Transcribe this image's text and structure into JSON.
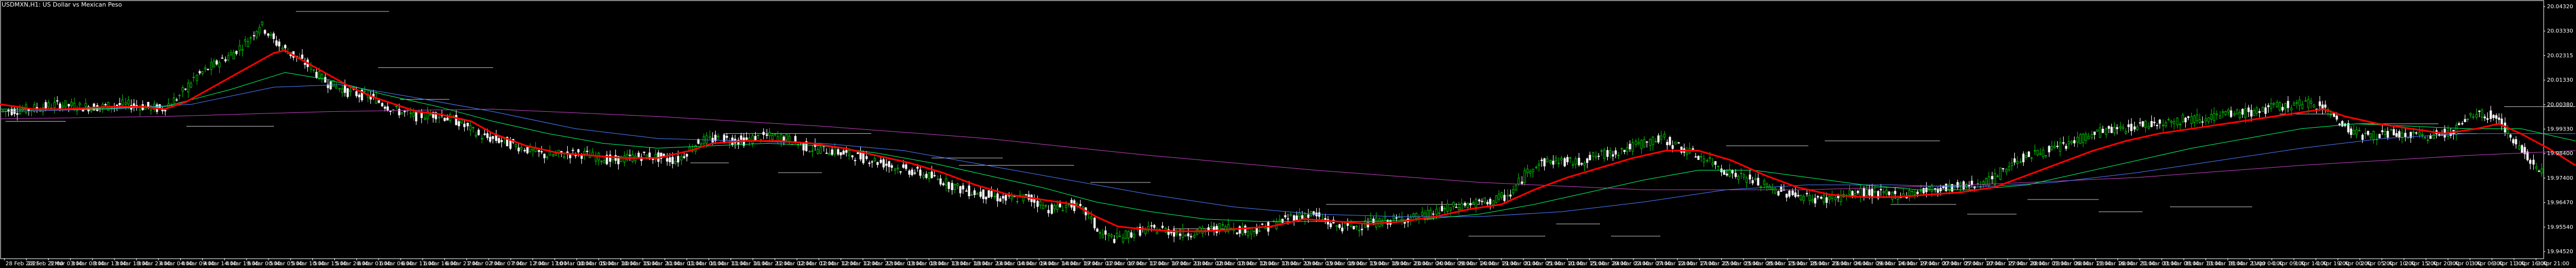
{
  "header": {
    "symbol_title": "USDMXN,H1: US Dollar vs Mexican Peso"
  },
  "colors": {
    "background": "#000000",
    "grid_frame": "#ffffff",
    "bull_candle": "#00c000",
    "bear_candle": "#ffffff",
    "ma_fast": "#ff0000",
    "ma_mid1": "#00ff66",
    "ma_mid2": "#4a7cff",
    "ma_slow": "#c040c0",
    "level_lines": "#c0c0c0"
  },
  "chart_data": {
    "type": "candlestick",
    "title": "USDMXN,H1: US Dollar vs Mexican Peso",
    "timeframe": "H1",
    "ylim": [
      19.94,
      20.045
    ],
    "y_ticks": [
      "20.04320",
      "20.03330",
      "20.02315",
      "20.01330",
      "20.00380",
      "19.99330",
      "19.98400",
      "19.97400",
      "19.96470",
      "19.95540",
      "19.94520"
    ],
    "x_ticks": [
      "28 Feb 2025",
      "28 Feb 22:00",
      "3 Mar 03:00",
      "3 Mar 08:00",
      "3 Mar 13:00",
      "3 Mar 18:00",
      "3 Mar 23:00",
      "4 Mar 04:00",
      "4 Mar 09:00",
      "4 Mar 14:00",
      "4 Mar 19:00",
      "5 Mar 00:00",
      "5 Mar 05:00",
      "5 Mar 10:00",
      "5 Mar 15:00",
      "5 Mar 20:00",
      "6 Mar 01:00",
      "6 Mar 06:00",
      "6 Mar 11:00",
      "6 Mar 16:00",
      "6 Mar 21:00",
      "7 Mar 02:00",
      "7 Mar 07:00",
      "7 Mar 12:00",
      "7 Mar 17:00",
      "10 Mar 00:00",
      "10 Mar 05:00",
      "10 Mar 10:00",
      "10 Mar 15:00",
      "10 Mar 20:00",
      "11 Mar 01:00",
      "11 Mar 06:00",
      "11 Mar 11:00",
      "11 Mar 16:00",
      "11 Mar 21:00",
      "12 Mar 02:00",
      "12 Mar 07:00",
      "12 Mar 12:00",
      "12 Mar 17:00",
      "12 Mar 22:00",
      "13 Mar 03:00",
      "13 Mar 08:00",
      "13 Mar 13:00",
      "13 Mar 18:00",
      "13 Mar 23:00",
      "14 Mar 04:00",
      "14 Mar 09:00",
      "14 Mar 14:00",
      "14 Mar 19:00",
      "17 Mar 01:00",
      "17 Mar 06:00",
      "17 Mar 11:00",
      "17 Mar 16:00",
      "17 Mar 21:00",
      "18 Mar 02:00",
      "18 Mar 07:00",
      "18 Mar 12:00",
      "18 Mar 17:00",
      "18 Mar 22:00",
      "19 Mar 03:00",
      "19 Mar 08:00",
      "19 Mar 13:00",
      "19 Mar 18:00",
      "19 Mar 23:00",
      "20 Mar 04:00",
      "20 Mar 09:00",
      "20 Mar 14:00",
      "20 Mar 19:00",
      "21 Mar 00:00",
      "21 Mar 05:00",
      "21 Mar 10:00",
      "21 Mar 15:00",
      "21 Mar 20:00",
      "24 Mar 02:00",
      "24 Mar 07:00",
      "24 Mar 12:00",
      "24 Mar 17:00",
      "24 Mar 22:00",
      "25 Mar 03:00",
      "25 Mar 08:00",
      "25 Mar 13:00",
      "25 Mar 18:00",
      "25 Mar 23:00",
      "26 Mar 04:00",
      "26 Mar 09:00",
      "26 Mar 14:00",
      "26 Mar 19:00",
      "27 Mar 00:00",
      "27 Mar 05:00",
      "27 Mar 10:00",
      "27 Mar 15:00",
      "27 Mar 20:00",
      "28 Mar 01:00",
      "28 Mar 06:00",
      "28 Mar 11:00",
      "28 Mar 16:00",
      "28 Mar 21:00",
      "31 Mar 03:00",
      "31 Mar 08:00",
      "31 Mar 13:00",
      "31 Mar 18:00",
      "31 Mar 23:00",
      "1 Apr 04:00",
      "1 Apr 09:00",
      "1 Apr 14:00",
      "1 Apr 19:00",
      "2 Apr 00:00",
      "2 Apr 05:00",
      "2 Apr 10:00",
      "2 Apr 15:00",
      "2 Apr 20:00",
      "3 Apr 01:00",
      "3 Apr 06:00",
      "3 Apr 11:00",
      "3 Apr 16:00",
      "3 Apr 21:00"
    ],
    "price_path": [
      [
        0,
        20.0
      ],
      [
        60,
        20.001
      ],
      [
        110,
        20.003
      ],
      [
        150,
        20.002
      ],
      [
        190,
        20.002
      ],
      [
        230,
        20.003
      ],
      [
        270,
        20.002
      ],
      [
        300,
        20.001
      ],
      [
        330,
        20.006
      ],
      [
        360,
        20.014
      ],
      [
        400,
        20.02
      ],
      [
        430,
        20.024
      ],
      [
        460,
        20.03
      ],
      [
        480,
        20.036
      ],
      [
        500,
        20.03
      ],
      [
        520,
        20.026
      ],
      [
        560,
        20.02
      ],
      [
        600,
        20.012
      ],
      [
        640,
        20.008
      ],
      [
        680,
        20.006
      ],
      [
        720,
        20.001
      ],
      [
        760,
        19.998
      ],
      [
        800,
        19.999
      ],
      [
        840,
        19.996
      ],
      [
        880,
        19.99
      ],
      [
        920,
        19.988
      ],
      [
        960,
        19.985
      ],
      [
        1000,
        19.982
      ],
      [
        1060,
        19.983
      ],
      [
        1120,
        19.98
      ],
      [
        1180,
        19.982
      ],
      [
        1240,
        19.98
      ],
      [
        1280,
        19.988
      ],
      [
        1320,
        19.989
      ],
      [
        1360,
        19.988
      ],
      [
        1400,
        19.99
      ],
      [
        1440,
        19.989
      ],
      [
        1480,
        19.985
      ],
      [
        1520,
        19.984
      ],
      [
        1560,
        19.982
      ],
      [
        1600,
        19.98
      ],
      [
        1640,
        19.977
      ],
      [
        1680,
        19.975
      ],
      [
        1720,
        19.972
      ],
      [
        1760,
        19.968
      ],
      [
        1800,
        19.966
      ],
      [
        1840,
        19.964
      ],
      [
        1880,
        19.965
      ],
      [
        1920,
        19.96
      ],
      [
        1960,
        19.962
      ],
      [
        1990,
        19.958
      ],
      [
        2010,
        19.95
      ],
      [
        2040,
        19.948
      ],
      [
        2080,
        19.951
      ],
      [
        2120,
        19.952
      ],
      [
        2160,
        19.95
      ],
      [
        2200,
        19.951
      ],
      [
        2240,
        19.953
      ],
      [
        2280,
        19.951
      ],
      [
        2320,
        19.953
      ],
      [
        2360,
        19.957
      ],
      [
        2400,
        19.958
      ],
      [
        2440,
        19.953
      ],
      [
        2480,
        19.953
      ],
      [
        2520,
        19.955
      ],
      [
        2560,
        19.956
      ],
      [
        2600,
        19.957
      ],
      [
        2640,
        19.96
      ],
      [
        2680,
        19.962
      ],
      [
        2720,
        19.963
      ],
      [
        2760,
        19.966
      ],
      [
        2800,
        19.978
      ],
      [
        2840,
        19.98
      ],
      [
        2880,
        19.979
      ],
      [
        2920,
        19.982
      ],
      [
        2960,
        19.984
      ],
      [
        3000,
        19.987
      ],
      [
        3040,
        19.989
      ],
      [
        3080,
        19.984
      ],
      [
        3120,
        19.98
      ],
      [
        3160,
        19.975
      ],
      [
        3200,
        19.972
      ],
      [
        3240,
        19.968
      ],
      [
        3280,
        19.966
      ],
      [
        3320,
        19.964
      ],
      [
        3360,
        19.965
      ],
      [
        3400,
        19.967
      ],
      [
        3440,
        19.966
      ],
      [
        3480,
        19.966
      ],
      [
        3520,
        19.968
      ],
      [
        3560,
        19.969
      ],
      [
        3600,
        19.97
      ],
      [
        3640,
        19.972
      ],
      [
        3680,
        19.98
      ],
      [
        3720,
        19.983
      ],
      [
        3760,
        19.985
      ],
      [
        3800,
        19.989
      ],
      [
        3840,
        19.992
      ],
      [
        3880,
        19.993
      ],
      [
        3920,
        19.995
      ],
      [
        3960,
        19.996
      ],
      [
        4000,
        19.997
      ],
      [
        4040,
        19.998
      ],
      [
        4080,
        19.999
      ],
      [
        4120,
        20.0
      ],
      [
        4160,
        20.002
      ],
      [
        4200,
        20.003
      ],
      [
        4240,
        20.003
      ],
      [
        4280,
        19.994
      ],
      [
        4320,
        19.99
      ],
      [
        4360,
        19.991
      ],
      [
        4400,
        19.99
      ],
      [
        4440,
        19.99
      ],
      [
        4480,
        19.992
      ],
      [
        4520,
        19.999
      ],
      [
        4560,
        19.998
      ],
      [
        4600,
        19.985
      ],
      [
        4640,
        19.976
      ],
      [
        4670,
        19.972
      ],
      [
        4700,
        19.964
      ]
    ],
    "ma_fast_path": [
      [
        0,
        20.003
      ],
      [
        60,
        20.001
      ],
      [
        120,
        20.001
      ],
      [
        200,
        20.002
      ],
      [
        260,
        20.002
      ],
      [
        300,
        20.001
      ],
      [
        340,
        20.004
      ],
      [
        380,
        20.009
      ],
      [
        420,
        20.014
      ],
      [
        460,
        20.019
      ],
      [
        500,
        20.024
      ],
      [
        520,
        20.025
      ],
      [
        560,
        20.02
      ],
      [
        600,
        20.015
      ],
      [
        640,
        20.01
      ],
      [
        680,
        20.006
      ],
      [
        720,
        20.003
      ],
      [
        760,
        20.0
      ],
      [
        800,
        19.999
      ],
      [
        860,
        19.996
      ],
      [
        900,
        19.991
      ],
      [
        960,
        19.986
      ],
      [
        1020,
        19.983
      ],
      [
        1080,
        19.982
      ],
      [
        1140,
        19.981
      ],
      [
        1200,
        19.981
      ],
      [
        1260,
        19.984
      ],
      [
        1300,
        19.987
      ],
      [
        1360,
        19.988
      ],
      [
        1420,
        19.988
      ],
      [
        1480,
        19.987
      ],
      [
        1540,
        19.985
      ],
      [
        1600,
        19.982
      ],
      [
        1660,
        19.979
      ],
      [
        1720,
        19.975
      ],
      [
        1780,
        19.97
      ],
      [
        1840,
        19.966
      ],
      [
        1900,
        19.964
      ],
      [
        1960,
        19.962
      ],
      [
        2000,
        19.957
      ],
      [
        2040,
        19.953
      ],
      [
        2080,
        19.952
      ],
      [
        2140,
        19.951
      ],
      [
        2200,
        19.951
      ],
      [
        2260,
        19.952
      ],
      [
        2320,
        19.953
      ],
      [
        2380,
        19.956
      ],
      [
        2440,
        19.955
      ],
      [
        2500,
        19.954
      ],
      [
        2560,
        19.955
      ],
      [
        2620,
        19.957
      ],
      [
        2680,
        19.96
      ],
      [
        2740,
        19.962
      ],
      [
        2800,
        19.968
      ],
      [
        2860,
        19.973
      ],
      [
        2920,
        19.977
      ],
      [
        2980,
        19.981
      ],
      [
        3040,
        19.984
      ],
      [
        3100,
        19.984
      ],
      [
        3160,
        19.98
      ],
      [
        3220,
        19.974
      ],
      [
        3280,
        19.969
      ],
      [
        3340,
        19.966
      ],
      [
        3400,
        19.965
      ],
      [
        3460,
        19.965
      ],
      [
        3520,
        19.966
      ],
      [
        3580,
        19.967
      ],
      [
        3640,
        19.969
      ],
      [
        3700,
        19.974
      ],
      [
        3760,
        19.979
      ],
      [
        3820,
        19.984
      ],
      [
        3880,
        19.988
      ],
      [
        3940,
        19.991
      ],
      [
        4000,
        19.993
      ],
      [
        4060,
        19.995
      ],
      [
        4120,
        19.997
      ],
      [
        4180,
        19.999
      ],
      [
        4240,
        20.001
      ],
      [
        4280,
        19.998
      ],
      [
        4340,
        19.995
      ],
      [
        4400,
        19.993
      ],
      [
        4460,
        19.991
      ],
      [
        4520,
        19.993
      ],
      [
        4560,
        19.995
      ],
      [
        4600,
        19.991
      ],
      [
        4650,
        19.985
      ],
      [
        4700,
        19.978
      ]
    ],
    "ma_mid1_path": [
      [
        0,
        20.001
      ],
      [
        150,
        20.001
      ],
      [
        300,
        20.002
      ],
      [
        420,
        20.009
      ],
      [
        520,
        20.016
      ],
      [
        600,
        20.013
      ],
      [
        700,
        20.007
      ],
      [
        800,
        20.002
      ],
      [
        900,
        19.996
      ],
      [
        1000,
        19.991
      ],
      [
        1100,
        19.987
      ],
      [
        1200,
        19.985
      ],
      [
        1300,
        19.986
      ],
      [
        1400,
        19.987
      ],
      [
        1500,
        19.986
      ],
      [
        1600,
        19.983
      ],
      [
        1700,
        19.979
      ],
      [
        1800,
        19.974
      ],
      [
        1900,
        19.969
      ],
      [
        2000,
        19.963
      ],
      [
        2100,
        19.959
      ],
      [
        2200,
        19.956
      ],
      [
        2300,
        19.955
      ],
      [
        2400,
        19.955
      ],
      [
        2500,
        19.955
      ],
      [
        2600,
        19.956
      ],
      [
        2700,
        19.958
      ],
      [
        2800,
        19.962
      ],
      [
        2900,
        19.967
      ],
      [
        3000,
        19.972
      ],
      [
        3100,
        19.976
      ],
      [
        3200,
        19.976
      ],
      [
        3300,
        19.973
      ],
      [
        3400,
        19.97
      ],
      [
        3500,
        19.968
      ],
      [
        3600,
        19.968
      ],
      [
        3700,
        19.97
      ],
      [
        3800,
        19.975
      ],
      [
        3900,
        19.98
      ],
      [
        4000,
        19.985
      ],
      [
        4100,
        19.989
      ],
      [
        4200,
        19.993
      ],
      [
        4300,
        19.995
      ],
      [
        4400,
        19.994
      ],
      [
        4500,
        19.993
      ],
      [
        4600,
        19.993
      ],
      [
        4700,
        19.988
      ]
    ],
    "ma_mid2_path": [
      [
        0,
        20.0
      ],
      [
        200,
        20.001
      ],
      [
        350,
        20.003
      ],
      [
        500,
        20.01
      ],
      [
        620,
        20.011
      ],
      [
        750,
        20.006
      ],
      [
        900,
        20.0
      ],
      [
        1050,
        19.993
      ],
      [
        1200,
        19.989
      ],
      [
        1350,
        19.988
      ],
      [
        1500,
        19.987
      ],
      [
        1650,
        19.984
      ],
      [
        1800,
        19.978
      ],
      [
        1950,
        19.972
      ],
      [
        2100,
        19.966
      ],
      [
        2250,
        19.961
      ],
      [
        2400,
        19.958
      ],
      [
        2550,
        19.957
      ],
      [
        2700,
        19.957
      ],
      [
        2850,
        19.959
      ],
      [
        3000,
        19.963
      ],
      [
        3150,
        19.968
      ],
      [
        3300,
        19.97
      ],
      [
        3450,
        19.97
      ],
      [
        3600,
        19.969
      ],
      [
        3750,
        19.971
      ],
      [
        3900,
        19.975
      ],
      [
        4050,
        19.98
      ],
      [
        4200,
        19.985
      ],
      [
        4350,
        19.989
      ],
      [
        4500,
        19.991
      ],
      [
        4700,
        19.991
      ]
    ],
    "ma_slow_path": [
      [
        0,
        19.997
      ],
      [
        300,
        19.998
      ],
      [
        600,
        20.0
      ],
      [
        900,
        20.001
      ],
      [
        1200,
        19.998
      ],
      [
        1500,
        19.994
      ],
      [
        1800,
        19.989
      ],
      [
        2100,
        19.982
      ],
      [
        2400,
        19.976
      ],
      [
        2700,
        19.971
      ],
      [
        3000,
        19.968
      ],
      [
        3300,
        19.968
      ],
      [
        3600,
        19.97
      ],
      [
        3900,
        19.973
      ],
      [
        4200,
        19.978
      ],
      [
        4500,
        19.982
      ],
      [
        4700,
        19.984
      ]
    ],
    "level_lines": [
      [
        540,
        20.041,
        710
      ],
      [
        690,
        20.018,
        900
      ],
      [
        10,
        19.996,
        120
      ],
      [
        340,
        19.994,
        500
      ],
      [
        730,
        20.005,
        820
      ],
      [
        1320,
        19.991,
        1590
      ],
      [
        1260,
        19.979,
        1330
      ],
      [
        1420,
        19.975,
        1500
      ],
      [
        1700,
        19.981,
        1830
      ],
      [
        1750,
        19.978,
        1960
      ],
      [
        1990,
        19.971,
        2100
      ],
      [
        2140,
        19.952,
        2280
      ],
      [
        2420,
        19.962,
        2560
      ],
      [
        2560,
        19.962,
        2700
      ],
      [
        2680,
        19.949,
        2820
      ],
      [
        2840,
        19.954,
        2920
      ],
      [
        2940,
        19.949,
        3030
      ],
      [
        3150,
        19.986,
        3300
      ],
      [
        3330,
        19.988,
        3540
      ],
      [
        3450,
        19.962,
        3570
      ],
      [
        3590,
        19.958,
        3680
      ],
      [
        3700,
        19.964,
        3830
      ],
      [
        3830,
        19.959,
        3910
      ],
      [
        3960,
        19.961,
        4110
      ],
      [
        4160,
        19.999,
        4260
      ],
      [
        4300,
        19.995,
        4450
      ],
      [
        4460,
        19.991,
        4520
      ],
      [
        4570,
        20.002,
        4700
      ]
    ]
  }
}
